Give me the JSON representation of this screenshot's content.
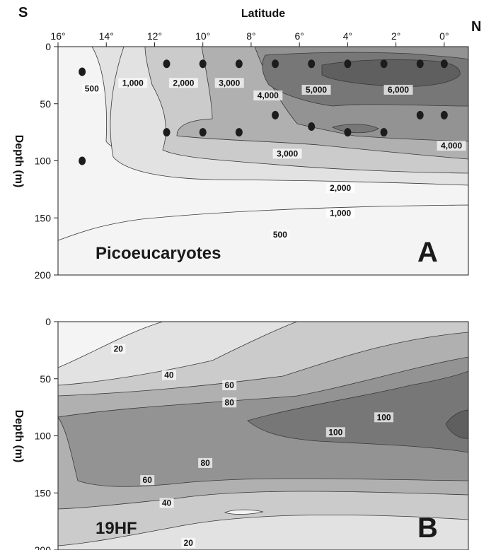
{
  "figure": {
    "xlabel": "Latitude",
    "left_label": "S",
    "right_label": "N"
  },
  "colors": {
    "shade_lightest": "#f4f4f4",
    "shade_1": "#e2e2e2",
    "shade_2": "#cbcbcb",
    "shade_3": "#b0b0b0",
    "shade_4": "#939393",
    "shade_5": "#777777",
    "shade_6": "#5f5f5f",
    "sample_dot": "#1c1c1c"
  },
  "chart_data": [
    {
      "type": "heatmap",
      "panel_name": "Picoeucaryotes",
      "panel_letter": "A",
      "xlabel": "Latitude",
      "ylabel": "Depth (m)",
      "x_ticks": [
        "16°",
        "14°",
        "12°",
        "10°",
        "8°",
        "6°",
        "4°",
        "2°",
        "0°"
      ],
      "x_tick_values": [
        16,
        14,
        12,
        10,
        8,
        6,
        4,
        2,
        0
      ],
      "y_ticks": [
        "0",
        "50",
        "100",
        "150",
        "200"
      ],
      "y_tick_values": [
        0,
        50,
        100,
        150,
        200
      ],
      "xlim": [
        16,
        -1
      ],
      "ylim": [
        0,
        200
      ],
      "contour_levels": [
        500,
        1000,
        2000,
        3000,
        4000,
        5000,
        6000
      ],
      "contour_labels": [
        {
          "text": "500",
          "x": 14.6,
          "y": 38
        },
        {
          "text": "1,000",
          "x": 12.9,
          "y": 33
        },
        {
          "text": "2,000",
          "x": 10.8,
          "y": 33
        },
        {
          "text": "3,000",
          "x": 8.9,
          "y": 33
        },
        {
          "text": "4,000",
          "x": 7.3,
          "y": 44
        },
        {
          "text": "5,000",
          "x": 5.3,
          "y": 39
        },
        {
          "text": "6,000",
          "x": 1.9,
          "y": 39
        },
        {
          "text": "3,000",
          "x": 6.5,
          "y": 95
        },
        {
          "text": "4,000",
          "x": -0.3,
          "y": 88
        },
        {
          "text": "2,000",
          "x": 4.3,
          "y": 125
        },
        {
          "text": "1,000",
          "x": 4.3,
          "y": 147
        },
        {
          "text": "500",
          "x": 6.8,
          "y": 166
        }
      ],
      "sample_points": [
        {
          "lat": 15,
          "depth": 22
        },
        {
          "lat": 15,
          "depth": 100
        },
        {
          "lat": 11.5,
          "depth": 15
        },
        {
          "lat": 11.5,
          "depth": 75
        },
        {
          "lat": 10,
          "depth": 15
        },
        {
          "lat": 10,
          "depth": 75
        },
        {
          "lat": 8.5,
          "depth": 15
        },
        {
          "lat": 8.5,
          "depth": 75
        },
        {
          "lat": 7,
          "depth": 15
        },
        {
          "lat": 7,
          "depth": 60
        },
        {
          "lat": 5.5,
          "depth": 15
        },
        {
          "lat": 5.5,
          "depth": 70
        },
        {
          "lat": 4,
          "depth": 15
        },
        {
          "lat": 4,
          "depth": 75
        },
        {
          "lat": 2.5,
          "depth": 15
        },
        {
          "lat": 2.5,
          "depth": 75
        },
        {
          "lat": 1,
          "depth": 15
        },
        {
          "lat": 1,
          "depth": 60
        },
        {
          "lat": 0,
          "depth": 15
        },
        {
          "lat": 0,
          "depth": 60
        }
      ]
    },
    {
      "type": "heatmap",
      "panel_name": "19HF",
      "panel_letter": "B",
      "xlabel": "Latitude",
      "ylabel": "Depth (m)",
      "x_ticks": [
        "16°",
        "14°",
        "12°",
        "10°",
        "8°",
        "6°",
        "4°",
        "2°",
        "0°"
      ],
      "x_tick_values": [
        16,
        14,
        12,
        10,
        8,
        6,
        4,
        2,
        0
      ],
      "y_ticks": [
        "0",
        "50",
        "100",
        "150",
        "200"
      ],
      "y_tick_values": [
        0,
        50,
        100,
        150,
        200
      ],
      "xlim": [
        16,
        -1
      ],
      "ylim": [
        0,
        200
      ],
      "contour_levels": [
        20,
        40,
        60,
        80,
        100
      ],
      "contour_labels": [
        {
          "text": "20",
          "x": 13.5,
          "y": 25
        },
        {
          "text": "40",
          "x": 11.4,
          "y": 48
        },
        {
          "text": "60",
          "x": 8.9,
          "y": 57
        },
        {
          "text": "80",
          "x": 8.9,
          "y": 72
        },
        {
          "text": "100",
          "x": 2.5,
          "y": 85
        },
        {
          "text": "100",
          "x": 4.5,
          "y": 98
        },
        {
          "text": "80",
          "x": 9.9,
          "y": 125
        },
        {
          "text": "60",
          "x": 12.3,
          "y": 140
        },
        {
          "text": "40",
          "x": 11.5,
          "y": 160
        },
        {
          "text": "20",
          "x": 10.6,
          "y": 195
        }
      ]
    }
  ]
}
